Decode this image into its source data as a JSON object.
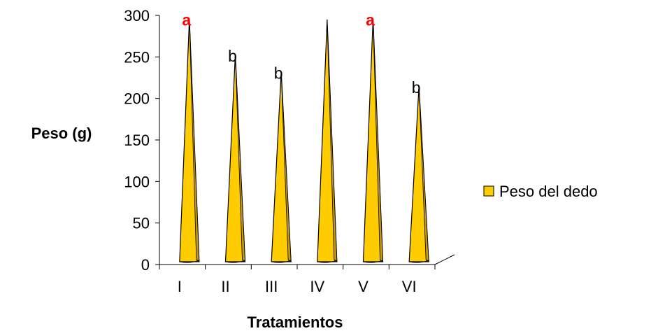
{
  "chart_data": {
    "type": "bar",
    "shape": "3d-cone",
    "xlabel": "Tratamientos",
    "ylabel": "Peso (g)",
    "categories": [
      "I",
      "II",
      "III",
      "IV",
      "V",
      "VI"
    ],
    "ylim": [
      0,
      300
    ],
    "yticks": [
      0,
      50,
      100,
      150,
      200,
      250,
      300
    ],
    "series": [
      {
        "name": "Peso del dedo",
        "values": [
          296,
          253,
          232,
          295,
          296,
          215
        ]
      }
    ],
    "significance_labels": [
      "a",
      "b",
      "b",
      "",
      "a",
      "b"
    ],
    "significance_colors": [
      "#ff0000",
      "#000000",
      "#000000",
      "",
      "#ff0000",
      "#000000"
    ],
    "legend_position": "right",
    "grid": false,
    "colors": {
      "bar_fill": "#ffcc00",
      "bar_shade": "#c89a00",
      "outline": "#000000"
    }
  }
}
